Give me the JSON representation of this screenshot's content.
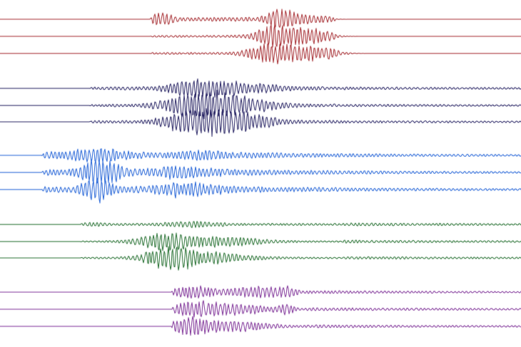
{
  "groups": [
    {
      "color": "#a3262b"
    },
    {
      "color": "#1f1b5e"
    },
    {
      "color": "#1d5fd6"
    },
    {
      "color": "#1e6b2a"
    },
    {
      "color": "#7a2a94"
    }
  ]
}
